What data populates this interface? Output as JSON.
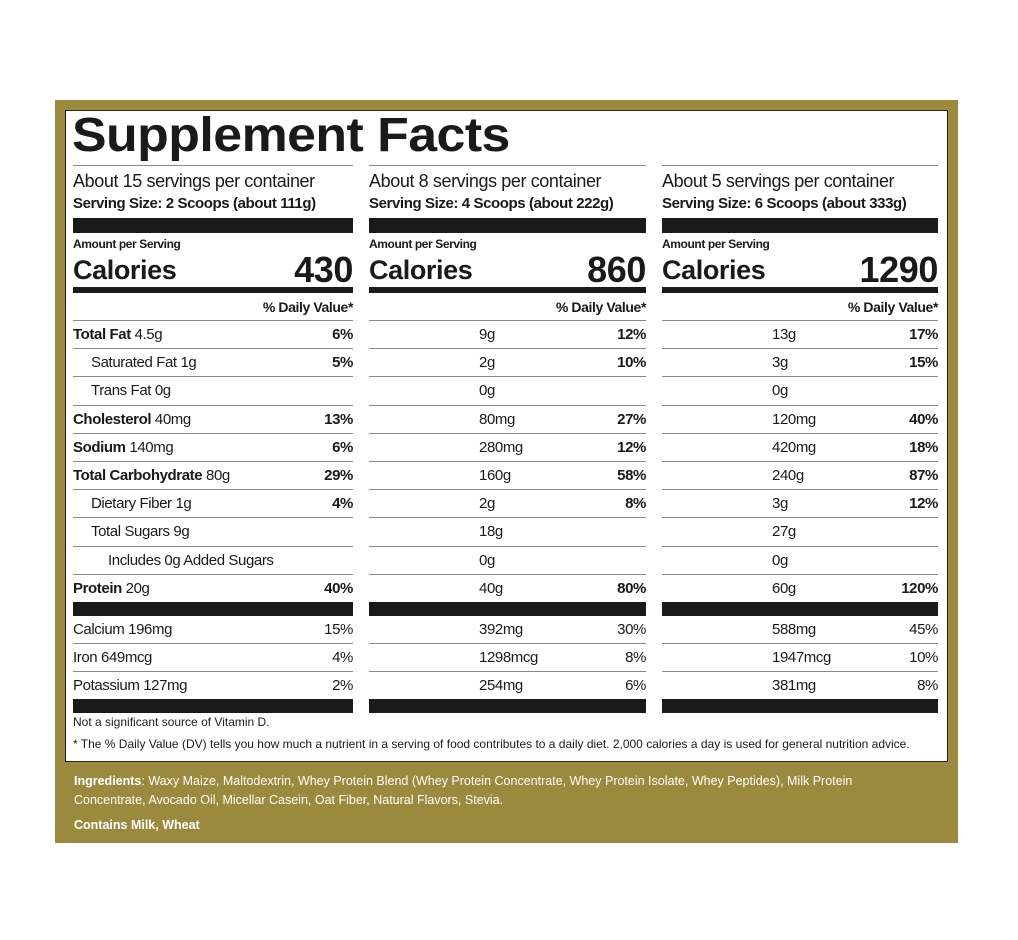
{
  "title": "Supplement Facts",
  "colors": {
    "border": "#9b8a3e",
    "ink": "#1a1a1a"
  },
  "columns": [
    {
      "servings": "About 15 servings per container",
      "serving_size": "Serving Size:  2 Scoops (about 111g)",
      "amount_label": "Amount per Serving",
      "calories_label": "Calories",
      "calories": "430",
      "dv_label": "% Daily Value*",
      "nutrients": [
        [
          "Total Fat",
          "4.5g",
          "6%"
        ],
        [
          "Saturated Fat",
          "1g",
          "5%"
        ],
        [
          "Trans Fat",
          "0g",
          ""
        ],
        [
          "Cholesterol",
          "40mg",
          "13%"
        ],
        [
          "Sodium",
          "140mg",
          "6%"
        ],
        [
          "Total Carbohydrate",
          "80g",
          "29%"
        ],
        [
          "Dietary Fiber",
          "1g",
          "4%"
        ],
        [
          "Total Sugars",
          "9g",
          ""
        ],
        [
          "Includes 0g Added Sugars",
          "",
          ""
        ],
        [
          "Protein",
          "20g",
          "40%"
        ]
      ],
      "minerals": [
        [
          "Calcium",
          "196mg",
          "15%"
        ],
        [
          "Iron",
          "649mcg",
          "4%"
        ],
        [
          "Potassium",
          "127mg",
          "2%"
        ]
      ]
    },
    {
      "servings": "About 8 servings per container",
      "serving_size": "Serving Size: 4 Scoops (about 222g)",
      "amount_label": "Amount per Serving",
      "calories_label": "Calories",
      "calories": "860",
      "dv_label": "% Daily Value*",
      "nutrients": [
        [
          "",
          "9g",
          "12%"
        ],
        [
          "",
          "2g",
          "10%"
        ],
        [
          "",
          "0g",
          ""
        ],
        [
          "",
          "80mg",
          "27%"
        ],
        [
          "",
          "280mg",
          "12%"
        ],
        [
          "",
          "160g",
          "58%"
        ],
        [
          "",
          "2g",
          "8%"
        ],
        [
          "",
          "18g",
          ""
        ],
        [
          "",
          "0g",
          ""
        ],
        [
          "",
          "40g",
          "80%"
        ]
      ],
      "minerals": [
        [
          "",
          "392mg",
          "30%"
        ],
        [
          "",
          "1298mcg",
          "8%"
        ],
        [
          "",
          "254mg",
          "6%"
        ]
      ]
    },
    {
      "servings": "About 5 servings per container",
      "serving_size": "Serving Size: 6 Scoops (about 333g)",
      "amount_label": "Amount per Serving",
      "calories_label": "Calories",
      "calories": "1290",
      "dv_label": "% Daily Value*",
      "nutrients": [
        [
          "",
          "13g",
          "17%"
        ],
        [
          "",
          "3g",
          "15%"
        ],
        [
          "",
          "0g",
          ""
        ],
        [
          "",
          "120mg",
          "40%"
        ],
        [
          "",
          "420mg",
          "18%"
        ],
        [
          "",
          "240g",
          "87%"
        ],
        [
          "",
          "3g",
          "12%"
        ],
        [
          "",
          "27g",
          ""
        ],
        [
          "",
          "0g",
          ""
        ],
        [
          "",
          "60g",
          "120%"
        ]
      ],
      "minerals": [
        [
          "",
          "588mg",
          "45%"
        ],
        [
          "",
          "1947mcg",
          "10%"
        ],
        [
          "",
          "381mg",
          "8%"
        ]
      ]
    }
  ],
  "footnotes": {
    "vitamin_d": "Not a significant source of Vitamin D.",
    "dv": "*   The % Daily Value (DV) tells you how much a nutrient in a serving of food contributes to a daily diet. 2,000 calories a day is used for general nutrition advice."
  },
  "ingredients": {
    "label": "Ingredients",
    "line1": ": Waxy Maize, Maltodextrin, Whey Protein Blend (Whey Protein Concentrate, Whey Protein Isolate, Whey Peptides), Milk Protein",
    "line2": "Concentrate, Avocado Oil, Micellar Casein, Oat Fiber, Natural Flavors, Stevia.",
    "allergens": "Contains Milk, Wheat"
  }
}
